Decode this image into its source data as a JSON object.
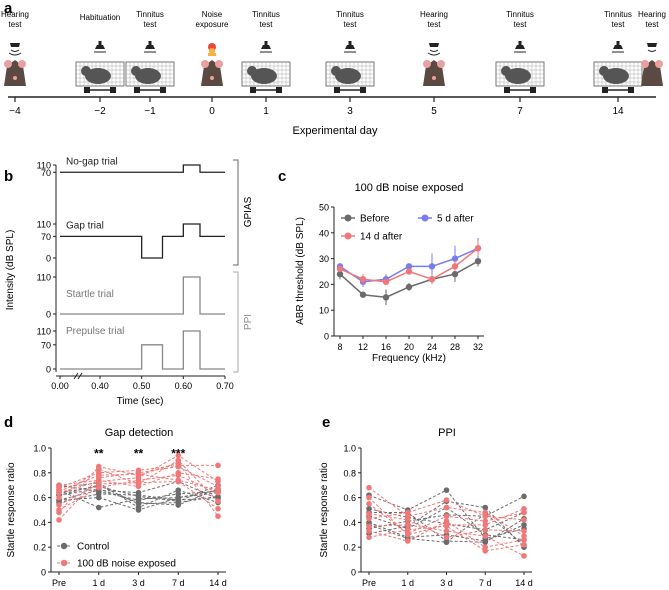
{
  "panels": {
    "a": "a",
    "b": "b",
    "c": "c",
    "d": "d",
    "e": "e"
  },
  "colors": {
    "control": "#6b6b6b",
    "noise": "#f07878",
    "five_d": "#7b7bf0",
    "axis": "#222222"
  },
  "timeline": {
    "xlabel": "Experimental day",
    "days": [
      "−4",
      "−2",
      "−1",
      "0",
      "1",
      "3",
      "5",
      "7",
      "14"
    ],
    "events": [
      {
        "line1": "Hearing",
        "line2": "test",
        "icon": "speaker-icon",
        "subject": "rodent-head-icon"
      },
      {
        "line1": "Habituation",
        "line2": "",
        "icon": "lamp-icon",
        "subject": "rodent-in-cage-icon"
      },
      {
        "line1": "Tinnitus",
        "line2": "test",
        "icon": "lamp-icon",
        "subject": "rodent-in-cage-icon"
      },
      {
        "line1": "Noise",
        "line2": "exposure",
        "icon": "noise-speaker-icon",
        "subject": "rodent-head-icon"
      },
      {
        "line1": "Tinnitus",
        "line2": "test",
        "icon": "lamp-icon",
        "subject": "rodent-in-cage-icon"
      },
      {
        "line1": "Tinnitus",
        "line2": "test",
        "icon": "lamp-icon",
        "subject": "rodent-in-cage-icon"
      },
      {
        "line1": "Hearing",
        "line2": "test",
        "icon": "speaker-icon",
        "subject": "rodent-head-icon"
      },
      {
        "line1": "Tinnitus",
        "line2": "test",
        "icon": "lamp-icon",
        "subject": "rodent-in-cage-icon"
      },
      {
        "line1": "Tinnitus",
        "line2": "test",
        "icon": "lamp-icon",
        "subject": "rodent-in-cage-icon"
      }
    ],
    "last_extra": {
      "line1": "Hearing",
      "line2": "test"
    }
  },
  "panel_b": {
    "ylabel": "Intensity (dB SPL)",
    "xlabel": "Time (sec)",
    "xticks": [
      "0.00",
      "0.40",
      "0.50",
      "0.60",
      "0.70"
    ],
    "group_gpias": "GPIAS",
    "group_ppi": "PPI",
    "trials": [
      {
        "name": "No-gap trial",
        "yticks": [
          "110",
          "70"
        ]
      },
      {
        "name": "Gap trial",
        "yticks": [
          "110",
          "70",
          "0"
        ]
      },
      {
        "name": "Startle trial",
        "yticks": [
          "110",
          "0"
        ]
      },
      {
        "name": "Prepulse trial",
        "yticks": [
          "110",
          "70",
          "0"
        ]
      }
    ]
  },
  "chart_data": [
    {
      "id": "c",
      "type": "line",
      "title": "100 dB noise exposed",
      "xlabel": "Frequency (kHz)",
      "ylabel": "ABR threshold (dB SPL)",
      "categories": [
        "8",
        "12",
        "16",
        "20",
        "24",
        "28",
        "32"
      ],
      "ylim": [
        0,
        50
      ],
      "yticks": [
        "0",
        "10",
        "20",
        "30",
        "40",
        "50"
      ],
      "series": [
        {
          "name": "Before",
          "color": "#6b6b6b",
          "values": [
            24,
            16,
            15,
            19,
            22,
            24,
            29
          ],
          "err": [
            2,
            1,
            3,
            1.5,
            2,
            3,
            2
          ]
        },
        {
          "name": "5 d after",
          "color": "#7b7bf0",
          "values": [
            27,
            21,
            22,
            27,
            27,
            30,
            34
          ],
          "err": [
            1,
            2,
            2,
            1,
            5,
            5,
            4
          ]
        },
        {
          "name": "14 d after",
          "color": "#f07878",
          "values": [
            26,
            22,
            21,
            25,
            22,
            27,
            34
          ],
          "err": [
            1,
            2,
            1,
            1,
            2,
            2,
            3
          ]
        }
      ]
    },
    {
      "id": "d",
      "type": "line",
      "title": "Gap detection",
      "ylabel": "Startle response ratio",
      "categories": [
        "Pre",
        "1 d",
        "3 d",
        "7 d",
        "14 d"
      ],
      "ylim": [
        0,
        1.0
      ],
      "yticks": [
        "0",
        "0.2",
        "0.4",
        "0.6",
        "0.8",
        "1.0"
      ],
      "annotations": [
        {
          "x": "1 d",
          "text": "**"
        },
        {
          "x": "3 d",
          "text": "**"
        },
        {
          "x": "7 d",
          "text": "***"
        }
      ],
      "legend": [
        "Control",
        "100 dB noise exposed"
      ],
      "control": [
        [
          0.56,
          0.63,
          0.62,
          0.58,
          0.6
        ],
        [
          0.62,
          0.7,
          0.55,
          0.56,
          0.61
        ],
        [
          0.66,
          0.52,
          0.59,
          0.6,
          0.64
        ],
        [
          0.68,
          0.72,
          0.52,
          0.66,
          0.56
        ],
        [
          0.58,
          0.66,
          0.64,
          0.73,
          0.59
        ],
        [
          0.62,
          0.67,
          0.56,
          0.54,
          0.67
        ],
        [
          0.64,
          0.69,
          0.61,
          0.57,
          0.7
        ],
        [
          0.58,
          0.6,
          0.5,
          0.6,
          0.66
        ],
        [
          0.7,
          0.65,
          0.58,
          0.63,
          0.65
        ]
      ],
      "noise": [
        [
          0.42,
          0.76,
          0.8,
          0.85,
          0.69
        ],
        [
          0.5,
          0.68,
          0.74,
          0.78,
          0.64
        ],
        [
          0.6,
          0.83,
          0.71,
          0.9,
          0.57
        ],
        [
          0.64,
          0.73,
          0.76,
          0.94,
          0.73
        ],
        [
          0.68,
          0.8,
          0.82,
          0.86,
          0.86
        ],
        [
          0.54,
          0.71,
          0.72,
          0.73,
          0.51
        ],
        [
          0.48,
          0.85,
          0.78,
          0.88,
          0.45
        ],
        [
          0.7,
          0.74,
          0.69,
          0.8,
          0.75
        ],
        [
          0.65,
          0.78,
          0.79,
          0.74,
          0.66
        ]
      ]
    },
    {
      "id": "e",
      "type": "line",
      "title": "PPI",
      "ylabel": "Startle response ratio",
      "categories": [
        "Pre",
        "1 d",
        "3 d",
        "7 d",
        "14 d"
      ],
      "ylim": [
        0,
        1.0
      ],
      "yticks": [
        "0",
        "0.2",
        "0.4",
        "0.6",
        "0.8",
        "1.0"
      ],
      "control": [
        [
          0.62,
          0.5,
          0.66,
          0.27,
          0.35
        ],
        [
          0.45,
          0.35,
          0.52,
          0.3,
          0.26
        ],
        [
          0.38,
          0.27,
          0.24,
          0.47,
          0.22
        ],
        [
          0.35,
          0.41,
          0.46,
          0.45,
          0.61
        ],
        [
          0.51,
          0.44,
          0.39,
          0.34,
          0.48
        ],
        [
          0.4,
          0.28,
          0.3,
          0.25,
          0.38
        ],
        [
          0.31,
          0.37,
          0.57,
          0.52,
          0.2
        ],
        [
          0.48,
          0.48,
          0.25,
          0.24,
          0.43
        ]
      ],
      "noise": [
        [
          0.68,
          0.45,
          0.52,
          0.48,
          0.29
        ],
        [
          0.6,
          0.3,
          0.38,
          0.38,
          0.51
        ],
        [
          0.43,
          0.48,
          0.58,
          0.45,
          0.42
        ],
        [
          0.37,
          0.38,
          0.33,
          0.29,
          0.13
        ],
        [
          0.33,
          0.25,
          0.41,
          0.2,
          0.26
        ],
        [
          0.47,
          0.42,
          0.28,
          0.34,
          0.33
        ],
        [
          0.55,
          0.31,
          0.45,
          0.41,
          0.48
        ],
        [
          0.28,
          0.34,
          0.37,
          0.17,
          0.22
        ]
      ]
    }
  ]
}
